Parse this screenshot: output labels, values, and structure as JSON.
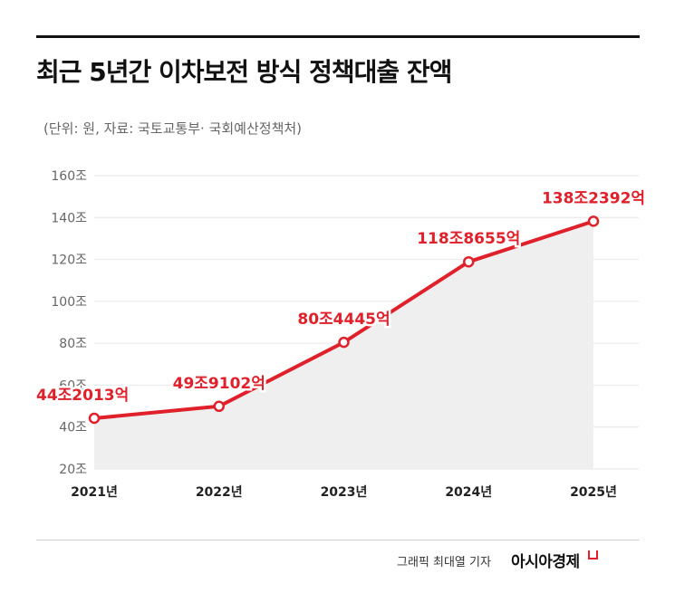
{
  "header": {
    "title": "최근 5년간 이차보전 방식 정책대출 잔액",
    "subtitle": "(단위: 원, 자료: 국토교통부· 국회예산정책처)"
  },
  "footer": {
    "credit": "그래픽  최대열 기자",
    "brand": "아시아경제"
  },
  "colors": {
    "line": "#e0202a",
    "area": "#efefef",
    "label": "#e0202a",
    "grid": "#e6e6e6",
    "axis_text": "#666666"
  },
  "chart_data": {
    "type": "line",
    "title": "최근 5년간 이차보전 방식 정책대출 잔액",
    "x": [
      "2021년",
      "2022년",
      "2023년",
      "2024년",
      "2025년"
    ],
    "values": [
      44.2013,
      49.9102,
      80.4445,
      118.8655,
      138.2392
    ],
    "data_labels": [
      "44조2013억",
      "49조9102억",
      "80조4445억",
      "118조8655억",
      "138조2392억"
    ],
    "y_ticks": [
      20,
      40,
      60,
      80,
      100,
      120,
      140,
      160
    ],
    "y_tick_labels": [
      "20조",
      "40조",
      "60조",
      "80조",
      "100조",
      "120조",
      "140조",
      "160조"
    ],
    "ylim": [
      20,
      160
    ],
    "unit": "조",
    "grid": true,
    "area_fill": true,
    "legend": "none"
  }
}
